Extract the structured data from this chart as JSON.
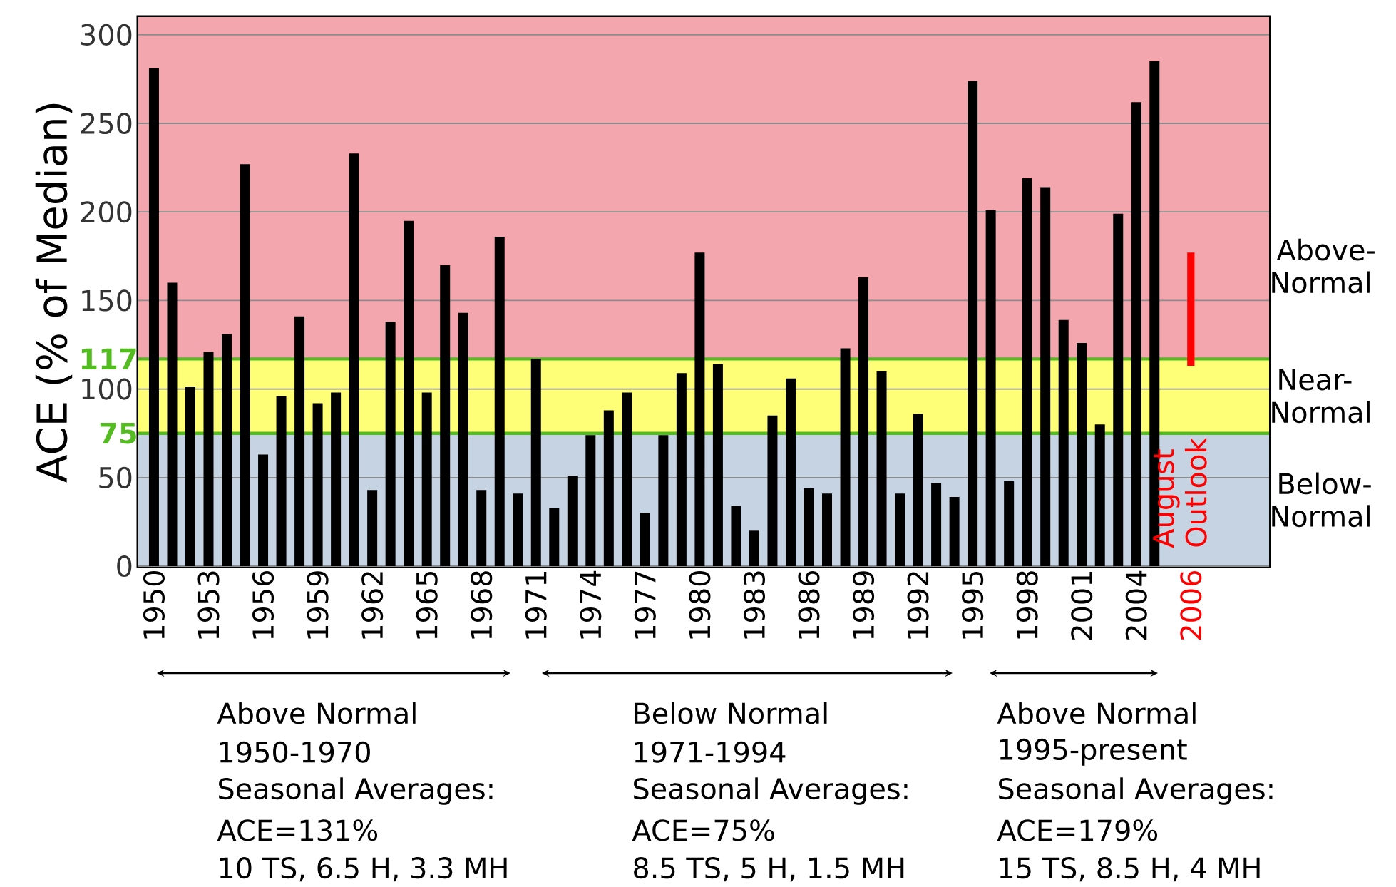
{
  "chart_data": {
    "type": "bar",
    "ylabel": "ACE (% of Median)",
    "categories": [
      "1950",
      null,
      null,
      "1953",
      null,
      null,
      "1956",
      null,
      null,
      "1959",
      null,
      null,
      "1962",
      null,
      null,
      "1965",
      null,
      null,
      "1968",
      null,
      null,
      "1971",
      null,
      null,
      "1974",
      null,
      null,
      "1977",
      null,
      null,
      "1980",
      null,
      null,
      "1983",
      null,
      null,
      "1986",
      null,
      null,
      "1989",
      null,
      null,
      "1992",
      null,
      null,
      "1995",
      null,
      null,
      "1998",
      null,
      null,
      "2001",
      null,
      null,
      "2004",
      null,
      null,
      "2006"
    ],
    "series": [
      {
        "color": "#000000",
        "values": [
          281,
          160,
          101,
          121,
          131,
          227,
          63,
          96,
          141,
          92,
          98,
          233,
          43,
          138,
          195,
          98,
          170,
          143,
          43,
          186,
          41,
          117,
          33,
          51,
          74,
          88,
          98,
          30,
          74,
          109,
          177,
          114,
          34,
          20,
          85,
          106,
          44,
          41,
          123,
          163,
          110,
          41,
          86,
          47,
          39,
          274,
          201,
          48,
          219,
          214,
          139,
          126,
          80,
          199,
          262,
          285,
          null,
          null
        ]
      },
      {
        "color": "#ff0000",
        "values": [
          null,
          null,
          null,
          null,
          null,
          null,
          null,
          null,
          null,
          null,
          null,
          null,
          null,
          null,
          null,
          null,
          null,
          null,
          null,
          null,
          null,
          null,
          null,
          null,
          null,
          null,
          null,
          null,
          null,
          null,
          null,
          null,
          null,
          null,
          null,
          null,
          null,
          null,
          null,
          null,
          null,
          null,
          null,
          null,
          null,
          null,
          null,
          null,
          null,
          null,
          null,
          null,
          null,
          null,
          null,
          null,
          null,
          64
        ],
        "base": [
          null,
          null,
          null,
          null,
          null,
          null,
          null,
          null,
          null,
          null,
          null,
          null,
          null,
          null,
          null,
          null,
          null,
          null,
          null,
          null,
          null,
          null,
          null,
          null,
          null,
          null,
          null,
          null,
          null,
          null,
          null,
          null,
          null,
          null,
          null,
          null,
          null,
          null,
          null,
          null,
          null,
          null,
          null,
          null,
          null,
          null,
          null,
          null,
          null,
          null,
          null,
          null,
          null,
          null,
          null,
          null,
          null,
          113
        ]
      }
    ],
    "ylim": [
      0,
      310
    ],
    "yticks": [
      0,
      50,
      100,
      150,
      200,
      250,
      300
    ],
    "grid": "y",
    "bands": [
      {
        "axis": "y",
        "from": 0,
        "to": 75,
        "label": "Below-Normal",
        "color": "#c5d3e3"
      },
      {
        "axis": "y",
        "from": 75,
        "to": 117,
        "label": "Near-Normal",
        "color": "#ffff77"
      },
      {
        "axis": "y",
        "from": 117,
        "to": 310,
        "label": "Above-Normal",
        "color": "#f3a6ad"
      }
    ],
    "ref_lines": [
      {
        "axis": "y",
        "value": 117,
        "label": "117",
        "color": "#55bb22"
      },
      {
        "axis": "y",
        "value": 75,
        "label": "75",
        "color": "#55bb22"
      }
    ],
    "annotations": [
      "Above Normal",
      "1950-1970",
      "Seasonal Averages:",
      "ACE=131%",
      "10 TS, 6.5 H, 3.3 MH",
      "Below Normal",
      "1971-1994",
      "Seasonal Averages:",
      "ACE=75%",
      "8.5 TS, 5 H, 1.5 MH",
      "Above Normal",
      "1995-present",
      "Seasonal Averages:",
      "ACE=179%",
      "15 TS, 8.5 H, 4 MH",
      "August Outlook"
    ]
  }
}
